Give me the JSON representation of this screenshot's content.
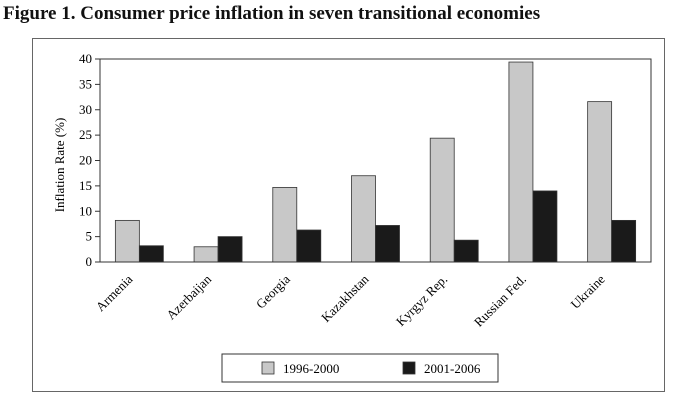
{
  "title": "Figure 1. Consumer price inflation in seven transitional economies",
  "chart_data": {
    "type": "bar",
    "title": "Figure 1. Consumer price inflation in seven transitional economies",
    "xlabel": "",
    "ylabel": "Inflation Rate (%)",
    "ylim": [
      0,
      40
    ],
    "yticks": [
      0,
      5,
      10,
      15,
      20,
      25,
      30,
      35,
      40
    ],
    "grid": false,
    "legend_position": "bottom-center",
    "categories": [
      "Armenia",
      "Azerbaijan",
      "Georgia",
      "Kazakhstan",
      "Kyrgyz Rep.",
      "Russian Fed.",
      "Ukraine"
    ],
    "series": [
      {
        "name": "1996-2000",
        "color": "#c8c8c8",
        "values": [
          8.2,
          3.0,
          14.7,
          17.0,
          24.4,
          39.4,
          31.6
        ]
      },
      {
        "name": "2001-2006",
        "color": "#1a1a1a",
        "values": [
          3.2,
          5.0,
          6.3,
          7.2,
          4.3,
          14.0,
          8.2
        ]
      }
    ]
  }
}
